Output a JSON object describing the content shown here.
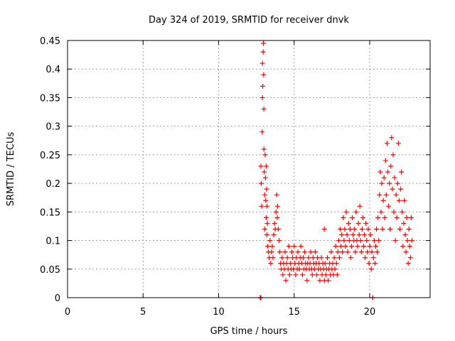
{
  "chart_data": {
    "type": "scatter",
    "title": "Day 324 of 2019, SRMTID for receiver dnvk",
    "xlabel": "GPS time / hours",
    "ylabel": "SRMTID / TECUs",
    "xlim": [
      0,
      24
    ],
    "ylim": [
      0,
      0.45
    ],
    "xticks": [
      0,
      5,
      10,
      15,
      20
    ],
    "yticks": [
      0,
      0.05,
      0.1,
      0.15,
      0.2,
      0.25,
      0.3,
      0.35,
      0.4,
      0.45
    ],
    "xtick_labels": [
      "0",
      "5",
      "10",
      "15",
      "20"
    ],
    "ytick_labels": [
      "0",
      "0.05",
      "0.1",
      "0.15",
      "0.2",
      "0.25",
      "0.3",
      "0.35",
      "0.4",
      "0.45"
    ],
    "grid": true,
    "marker": "+",
    "color": "#ff0000",
    "series": [
      {
        "name": "SRMTID",
        "points": [
          [
            12.75,
            0.0
          ],
          [
            12.8,
            0.0
          ],
          [
            12.8,
            0.23
          ],
          [
            12.82,
            0.2
          ],
          [
            12.85,
            0.16
          ],
          [
            12.88,
            0.29
          ],
          [
            12.9,
            0.35
          ],
          [
            12.9,
            0.41
          ],
          [
            12.92,
            0.37
          ],
          [
            12.95,
            0.43
          ],
          [
            12.97,
            0.445
          ],
          [
            12.98,
            0.39
          ],
          [
            13.0,
            0.33
          ],
          [
            13.0,
            0.26
          ],
          [
            13.02,
            0.22
          ],
          [
            13.05,
            0.18
          ],
          [
            13.05,
            0.12
          ],
          [
            13.08,
            0.25
          ],
          [
            13.1,
            0.21
          ],
          [
            13.12,
            0.17
          ],
          [
            13.15,
            0.23
          ],
          [
            13.15,
            0.14
          ],
          [
            13.18,
            0.19
          ],
          [
            13.2,
            0.11
          ],
          [
            13.2,
            0.16
          ],
          [
            13.22,
            0.13
          ],
          [
            13.25,
            0.09
          ],
          [
            13.3,
            0.08
          ],
          [
            13.35,
            0.07
          ],
          [
            13.4,
            0.1
          ],
          [
            13.45,
            0.06
          ],
          [
            13.5,
            0.08
          ],
          [
            13.55,
            0.09
          ],
          [
            13.6,
            0.07
          ],
          [
            13.65,
            0.11
          ],
          [
            13.7,
            0.13
          ],
          [
            13.75,
            0.12
          ],
          [
            13.8,
            0.15
          ],
          [
            13.85,
            0.18
          ],
          [
            13.88,
            0.14
          ],
          [
            13.9,
            0.16
          ],
          [
            13.95,
            0.12
          ],
          [
            14.0,
            0.1
          ],
          [
            14.05,
            0.08
          ],
          [
            14.1,
            0.06
          ],
          [
            14.15,
            0.05
          ],
          [
            14.2,
            0.07
          ],
          [
            14.25,
            0.04
          ],
          [
            14.3,
            0.06
          ],
          [
            14.35,
            0.05
          ],
          [
            14.4,
            0.08
          ],
          [
            14.45,
            0.03
          ],
          [
            14.5,
            0.06
          ],
          [
            14.55,
            0.07
          ],
          [
            14.6,
            0.05
          ],
          [
            14.65,
            0.09
          ],
          [
            14.7,
            0.04
          ],
          [
            14.75,
            0.06
          ],
          [
            14.8,
            0.05
          ],
          [
            14.85,
            0.08
          ],
          [
            14.9,
            0.07
          ],
          [
            14.95,
            0.05
          ],
          [
            15.0,
            0.09
          ],
          [
            15.05,
            0.06
          ],
          [
            15.1,
            0.04
          ],
          [
            15.15,
            0.07
          ],
          [
            15.2,
            0.05
          ],
          [
            15.25,
            0.08
          ],
          [
            15.3,
            0.06
          ],
          [
            15.35,
            0.05
          ],
          [
            15.4,
            0.07
          ],
          [
            15.45,
            0.09
          ],
          [
            15.5,
            0.06
          ],
          [
            15.55,
            0.04
          ],
          [
            15.6,
            0.07
          ],
          [
            15.65,
            0.05
          ],
          [
            15.7,
            0.08
          ],
          [
            15.75,
            0.06
          ],
          [
            15.8,
            0.05
          ],
          [
            15.85,
            0.03
          ],
          [
            15.9,
            0.06
          ],
          [
            15.95,
            0.07
          ],
          [
            16.0,
            0.05
          ],
          [
            16.05,
            0.06
          ],
          [
            16.1,
            0.08
          ],
          [
            16.15,
            0.05
          ],
          [
            16.2,
            0.04
          ],
          [
            16.25,
            0.07
          ],
          [
            16.3,
            0.06
          ],
          [
            16.35,
            0.05
          ],
          [
            16.4,
            0.08
          ],
          [
            16.45,
            0.06
          ],
          [
            16.5,
            0.04
          ],
          [
            16.55,
            0.07
          ],
          [
            16.6,
            0.05
          ],
          [
            16.65,
            0.06
          ],
          [
            16.7,
            0.03
          ],
          [
            16.75,
            0.05
          ],
          [
            16.8,
            0.07
          ],
          [
            16.85,
            0.04
          ],
          [
            16.9,
            0.06
          ],
          [
            16.95,
            0.05
          ],
          [
            17.0,
            0.12
          ],
          [
            17.0,
            0.03
          ],
          [
            17.05,
            0.06
          ],
          [
            17.1,
            0.04
          ],
          [
            17.15,
            0.05
          ],
          [
            17.2,
            0.07
          ],
          [
            17.25,
            0.03
          ],
          [
            17.3,
            0.05
          ],
          [
            17.35,
            0.06
          ],
          [
            17.4,
            0.04
          ],
          [
            17.45,
            0.08
          ],
          [
            17.5,
            0.05
          ],
          [
            17.55,
            0.06
          ],
          [
            17.6,
            0.04
          ],
          [
            17.65,
            0.07
          ],
          [
            17.7,
            0.05
          ],
          [
            17.75,
            0.09
          ],
          [
            17.8,
            0.06
          ],
          [
            17.85,
            0.04
          ],
          [
            17.9,
            0.08
          ],
          [
            17.95,
            0.1
          ],
          [
            18.0,
            0.07
          ],
          [
            18.05,
            0.12
          ],
          [
            18.1,
            0.09
          ],
          [
            18.15,
            0.11
          ],
          [
            18.2,
            0.08
          ],
          [
            18.25,
            0.14
          ],
          [
            18.3,
            0.1
          ],
          [
            18.35,
            0.12
          ],
          [
            18.4,
            0.09
          ],
          [
            18.45,
            0.15
          ],
          [
            18.5,
            0.11
          ],
          [
            18.55,
            0.08
          ],
          [
            18.6,
            0.13
          ],
          [
            18.65,
            0.1
          ],
          [
            18.7,
            0.12
          ],
          [
            18.75,
            0.07
          ],
          [
            18.8,
            0.09
          ],
          [
            18.85,
            0.14
          ],
          [
            18.9,
            0.11
          ],
          [
            18.95,
            0.1
          ],
          [
            19.0,
            0.12
          ],
          [
            19.05,
            0.08
          ],
          [
            19.1,
            0.15
          ],
          [
            19.15,
            0.1
          ],
          [
            19.2,
            0.09
          ],
          [
            19.25,
            0.13
          ],
          [
            19.3,
            0.11
          ],
          [
            19.35,
            0.16
          ],
          [
            19.4,
            0.1
          ],
          [
            19.45,
            0.08
          ],
          [
            19.5,
            0.12
          ],
          [
            19.55,
            0.14
          ],
          [
            19.6,
            0.09
          ],
          [
            19.65,
            0.11
          ],
          [
            19.7,
            0.07
          ],
          [
            19.75,
            0.13
          ],
          [
            19.8,
            0.1
          ],
          [
            19.85,
            0.08
          ],
          [
            19.9,
            0.12
          ],
          [
            19.95,
            0.06
          ],
          [
            20.0,
            0.09
          ],
          [
            20.05,
            0.11
          ],
          [
            20.1,
            0.05
          ],
          [
            20.15,
            0.08
          ],
          [
            20.2,
            0.0
          ],
          [
            20.25,
            0.07
          ],
          [
            20.3,
            0.1
          ],
          [
            20.35,
            0.06
          ],
          [
            20.4,
            0.09
          ],
          [
            20.45,
            0.12
          ],
          [
            20.5,
            0.08
          ],
          [
            20.55,
            0.14
          ],
          [
            20.6,
            0.1
          ],
          [
            20.65,
            0.18
          ],
          [
            20.7,
            0.22
          ],
          [
            20.75,
            0.15
          ],
          [
            20.8,
            0.2
          ],
          [
            20.85,
            0.12
          ],
          [
            20.9,
            0.17
          ],
          [
            20.95,
            0.21
          ],
          [
            21.0,
            0.14
          ],
          [
            21.05,
            0.24
          ],
          [
            21.1,
            0.18
          ],
          [
            21.15,
            0.27
          ],
          [
            21.2,
            0.22
          ],
          [
            21.25,
            0.16
          ],
          [
            21.3,
            0.2
          ],
          [
            21.35,
            0.12
          ],
          [
            21.4,
            0.23
          ],
          [
            21.45,
            0.28
          ],
          [
            21.5,
            0.19
          ],
          [
            21.55,
            0.25
          ],
          [
            21.6,
            0.15
          ],
          [
            21.65,
            0.21
          ],
          [
            21.7,
            0.1
          ],
          [
            21.75,
            0.18
          ],
          [
            21.8,
            0.14
          ],
          [
            21.85,
            0.2
          ],
          [
            21.9,
            0.27
          ],
          [
            21.95,
            0.17
          ],
          [
            22.0,
            0.12
          ],
          [
            22.05,
            0.19
          ],
          [
            22.1,
            0.22
          ],
          [
            22.15,
            0.15
          ],
          [
            22.2,
            0.09
          ],
          [
            22.25,
            0.13
          ],
          [
            22.3,
            0.17
          ],
          [
            22.35,
            0.11
          ],
          [
            22.4,
            0.08
          ],
          [
            22.45,
            0.14
          ],
          [
            22.5,
            0.1
          ],
          [
            22.55,
            0.06
          ],
          [
            22.6,
            0.12
          ],
          [
            22.65,
            0.09
          ],
          [
            22.7,
            0.07
          ],
          [
            22.75,
            0.14
          ],
          [
            22.8,
            0.1
          ]
        ]
      }
    ]
  }
}
